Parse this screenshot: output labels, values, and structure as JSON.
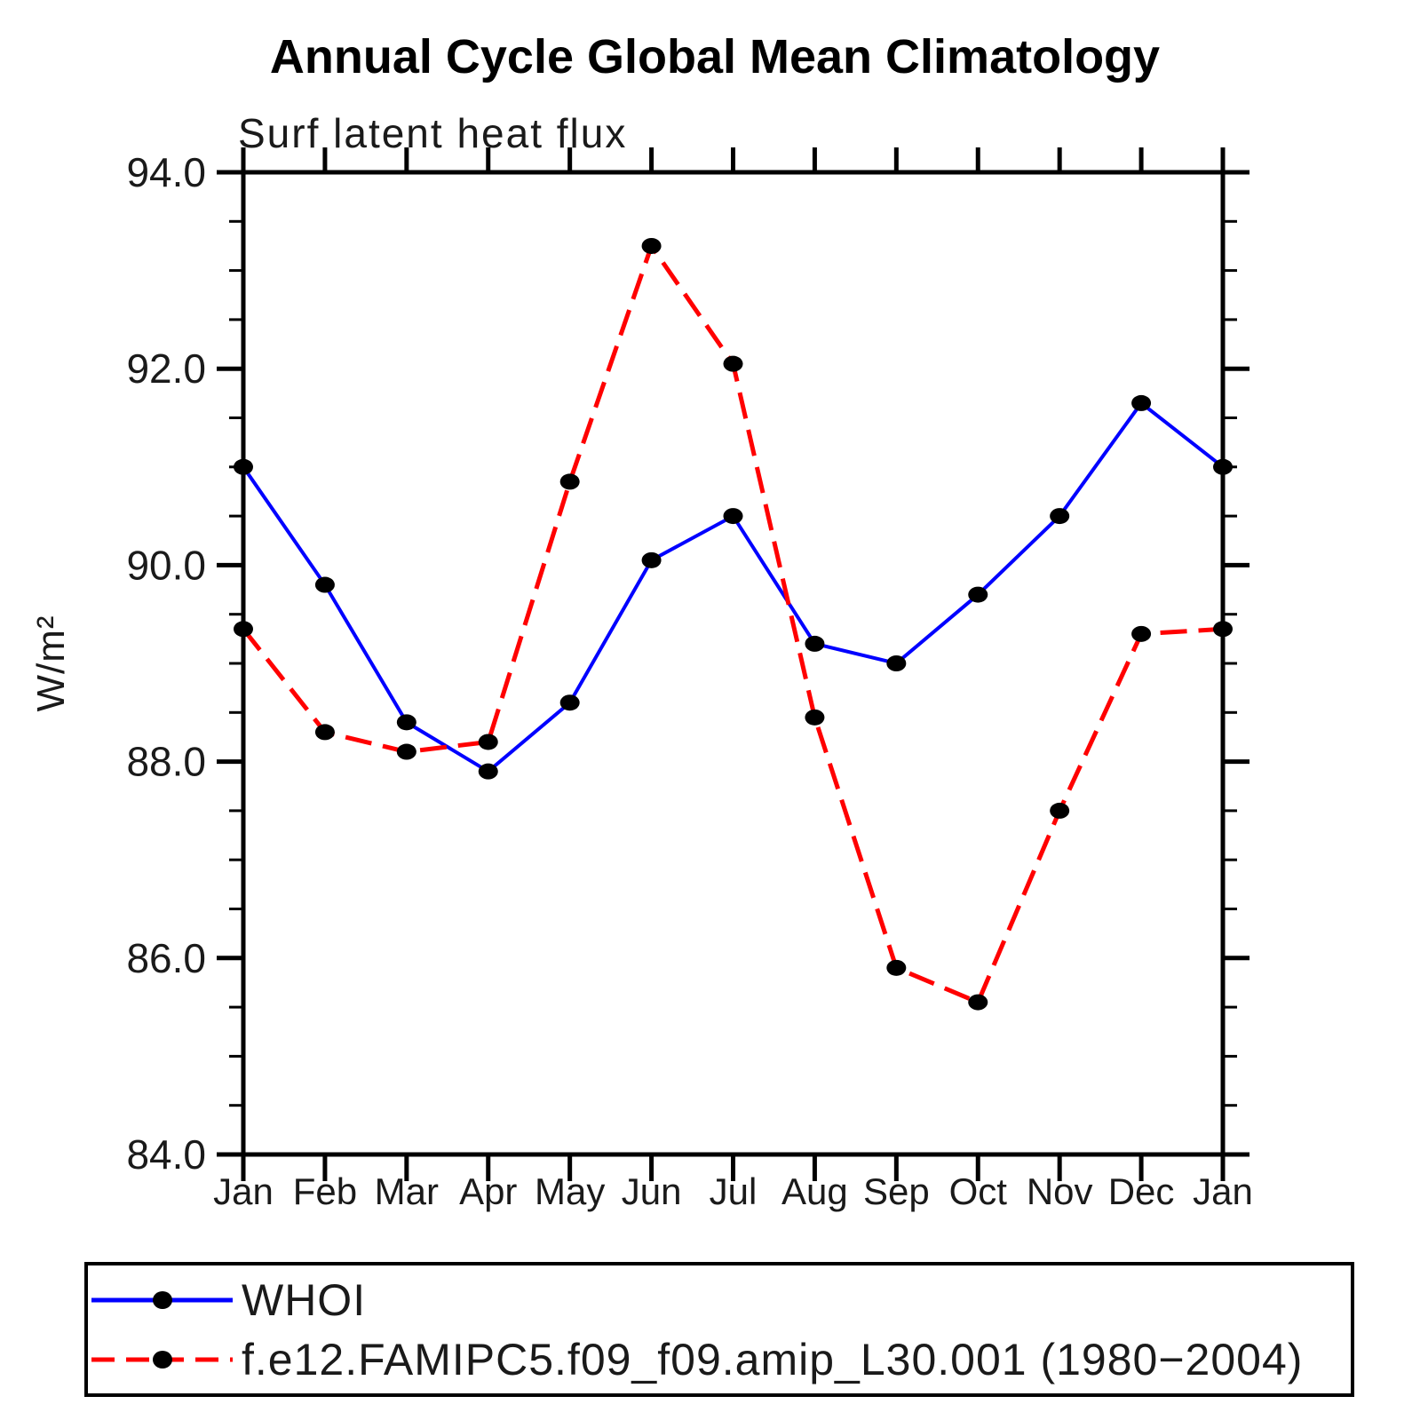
{
  "chart_data": {
    "type": "line",
    "title": "Annual Cycle Global Mean Climatology",
    "subtitle": "Surf latent heat flux",
    "ylabel": "W/m²",
    "categories": [
      "Jan",
      "Feb",
      "Mar",
      "Apr",
      "May",
      "Jun",
      "Jul",
      "Aug",
      "Sep",
      "Oct",
      "Nov",
      "Dec",
      "Jan"
    ],
    "series": [
      {
        "name": "WHOI",
        "color": "#0000ff",
        "line_style": "solid",
        "values": [
          91.0,
          89.8,
          88.4,
          87.9,
          88.6,
          90.05,
          90.5,
          89.2,
          89.0,
          89.7,
          90.5,
          91.65,
          91.0
        ]
      },
      {
        "name": "f.e12.FAMIPC5.f09_f09.amip_L30.001 (1980−2004)",
        "color": "#ff0000",
        "line_style": "dashed",
        "values": [
          89.35,
          88.3,
          88.1,
          88.2,
          90.85,
          93.25,
          92.05,
          88.45,
          85.9,
          85.55,
          87.5,
          89.3,
          89.35
        ]
      }
    ],
    "marker": {
      "shape": "filled-ellipse",
      "color": "#000000"
    },
    "ylim": [
      84.0,
      94.0
    ],
    "y_major_ticks": [
      84.0,
      86.0,
      88.0,
      90.0,
      92.0,
      94.0
    ],
    "y_tick_labels": [
      "84.0",
      "86.0",
      "88.0",
      "90.0",
      "92.0",
      "94.0"
    ],
    "y_minor_step": 0.5,
    "grid": false,
    "legend_position": "bottom-left-box"
  }
}
